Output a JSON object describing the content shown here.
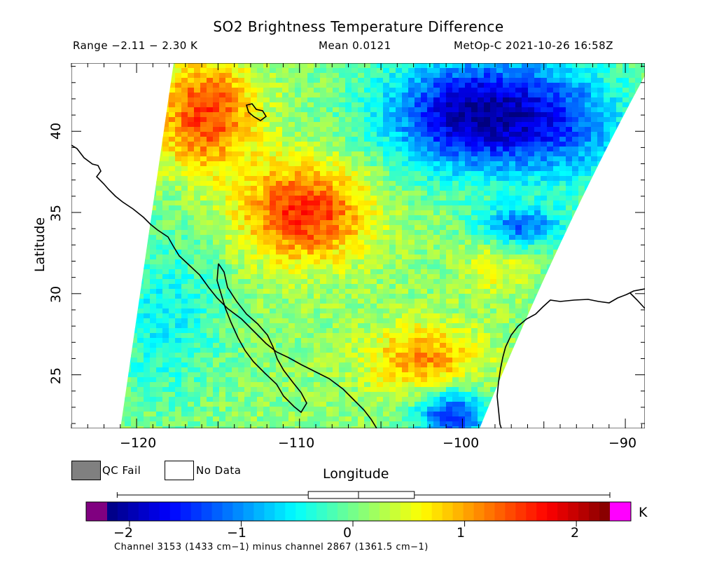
{
  "header": {
    "title": "SO2 Brightness Temperature Difference",
    "range": "Range −2.11 − 2.30 K",
    "mean": "Mean 0.0121",
    "source": "MetOp-C 2021-10-26 16:58Z"
  },
  "axes": {
    "x_label": "Longitude",
    "y_label": "Latitude",
    "x_ticks": [
      "−120",
      "−110",
      "−100",
      "−90"
    ],
    "y_ticks": [
      "40",
      "35",
      "30",
      "25"
    ],
    "x_range": [
      -124,
      -88.8
    ],
    "y_range": [
      21.7,
      44.2
    ]
  },
  "legend": {
    "qc_fail": "QC Fail",
    "no_data": "No Data",
    "qc_fail_color": "#808080",
    "no_data_color": "#ffffff"
  },
  "colorbar": {
    "unit": "K",
    "ticks": [
      "−2",
      "−1",
      "0",
      "1",
      "2"
    ],
    "tick_values": [
      -2,
      -1,
      0,
      1,
      2
    ],
    "range": [
      -2.2,
      2.3
    ],
    "under_color": "#800080",
    "over_color": "#ff00ff",
    "boxplot": {
      "min": -2.11,
      "q1": -0.4,
      "median": 0.05,
      "q3": 0.55,
      "max": 2.3
    }
  },
  "footer": {
    "caption": "Channel 3153 (1433 cm−1) minus channel 2867 (1361.5 cm−1)"
  },
  "map": {
    "land_outline_color": "#000000",
    "swath_colormap": "jet"
  }
}
